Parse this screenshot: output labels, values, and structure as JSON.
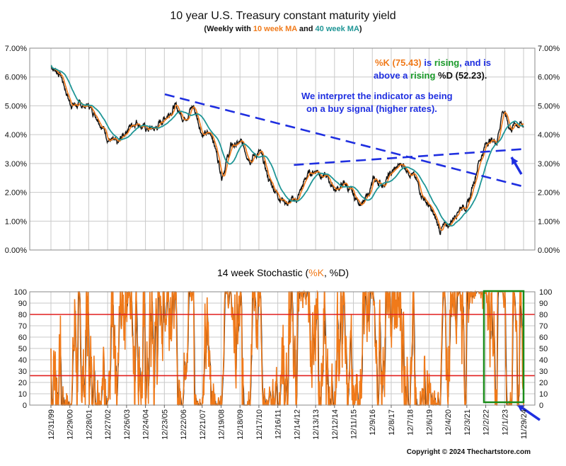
{
  "colors": {
    "orange": "#f07a1a",
    "teal": "#1f9696",
    "blue": "#1f2fe0",
    "green": "#1a9a2a",
    "red": "#e11f1f",
    "price": "#111111",
    "grid": "#c9c9c9",
    "box": "#1a8c1a"
  },
  "top_chart": {
    "title": "10 year U.S. Treasury constant maturity yield",
    "subtitle": {
      "part1": "(Weekly with ",
      "ma10": "10 week MA",
      "and": " and ",
      "ma40": "40 week MA",
      "close": ")"
    },
    "annotation": {
      "k_label": "%K (75.43)",
      "is": " is ",
      "rising1": "rising",
      "and_is": ", and is",
      "above_a": "above a ",
      "rising2": "rising",
      "d_label": " %D (52.23).",
      "interpret_line1": "We interpret the indicator as being",
      "interpret_line2": "on a buy signal (higher rates)."
    }
  },
  "bottom_chart": {
    "title_prefix": "14 week Stochastic (",
    "title_k": "%K",
    "title_sep": ", ",
    "title_d": "%D",
    "title_suffix": ")"
  },
  "copyright": "Copyright © 2024 Thechartstore.com",
  "chart_data": [
    {
      "type": "line",
      "title": "10 year U.S. Treasury constant maturity yield",
      "subtitle": "(Weekly with 10 week MA and 40 week MA)",
      "ylim": [
        0,
        7
      ],
      "y_ticks": [
        "0.00%",
        "1.00%",
        "2.00%",
        "3.00%",
        "4.00%",
        "5.00%",
        "6.00%",
        "7.00%"
      ],
      "x": [
        1999.99,
        2000.5,
        2001,
        2001.5,
        2002,
        2002.5,
        2003,
        2003.5,
        2004,
        2004.5,
        2005,
        2005.5,
        2006,
        2006.5,
        2007,
        2007.5,
        2008,
        2008.5,
        2009,
        2009.5,
        2010,
        2010.5,
        2011,
        2011.5,
        2012,
        2012.5,
        2013,
        2013.5,
        2014,
        2014.5,
        2015,
        2015.5,
        2016,
        2016.5,
        2017,
        2017.5,
        2018,
        2018.5,
        2019,
        2019.5,
        2020,
        2020.5,
        2021,
        2021.5,
        2022,
        2022.5,
        2023,
        2023.5,
        2023.8,
        2024.2,
        2024.5,
        2024.9
      ],
      "series": [
        {
          "values": [
            6.4,
            6.1,
            5.1,
            5.0,
            5.0,
            4.6,
            3.9,
            3.6,
            4.2,
            4.5,
            4.2,
            4.2,
            4.6,
            5.0,
            4.6,
            5.0,
            4.0,
            4.0,
            2.6,
            3.6,
            3.7,
            3.2,
            3.4,
            2.4,
            1.9,
            1.6,
            1.8,
            2.6,
            2.8,
            2.5,
            2.1,
            2.3,
            1.8,
            1.6,
            2.4,
            2.3,
            2.7,
            3.0,
            2.7,
            2.0,
            1.4,
            0.7,
            0.9,
            1.5,
            1.6,
            3.0,
            3.8,
            3.8,
            4.9,
            4.2,
            4.4,
            4.3
          ]
        }
      ],
      "trendlines": [
        {
          "x": [
            2006.0,
            2024.9
          ],
          "y": [
            5.4,
            2.2
          ]
        },
        {
          "x": [
            2012.8,
            2024.9
          ],
          "y": [
            2.95,
            3.5
          ]
        }
      ],
      "annotations": [
        "%K (75.43) is rising, and is above a rising %D (52.23).",
        "We interpret the indicator as being on a buy signal (higher rates)."
      ]
    },
    {
      "type": "line",
      "title": "14 week Stochastic (%K, %D)",
      "ylim": [
        0,
        100
      ],
      "y_ticks": [
        "0",
        "10",
        "20",
        "30",
        "40",
        "50",
        "60",
        "70",
        "80",
        "90",
        "100"
      ],
      "reference_lines": [
        80,
        26
      ],
      "x_ticks": [
        "12/31/99",
        "12/29/00",
        "12/28/01",
        "12/27/02",
        "12/26/03",
        "12/24/04",
        "12/23/05",
        "12/22/06",
        "12/21/07",
        "12/19/08",
        "12/18/09",
        "12/17/10",
        "12/16/11",
        "12/14/12",
        "12/13/13",
        "12/12/14",
        "12/11/15",
        "12/9/16",
        "12/8/17",
        "12/7/18",
        "12/6/19",
        "12/4/20",
        "12/3/21",
        "12/2/22",
        "12/1/23",
        "11/29/24"
      ],
      "series": [
        {
          "name": "%K",
          "current": 75.43
        },
        {
          "name": "%D",
          "current": 52.23
        }
      ]
    }
  ]
}
